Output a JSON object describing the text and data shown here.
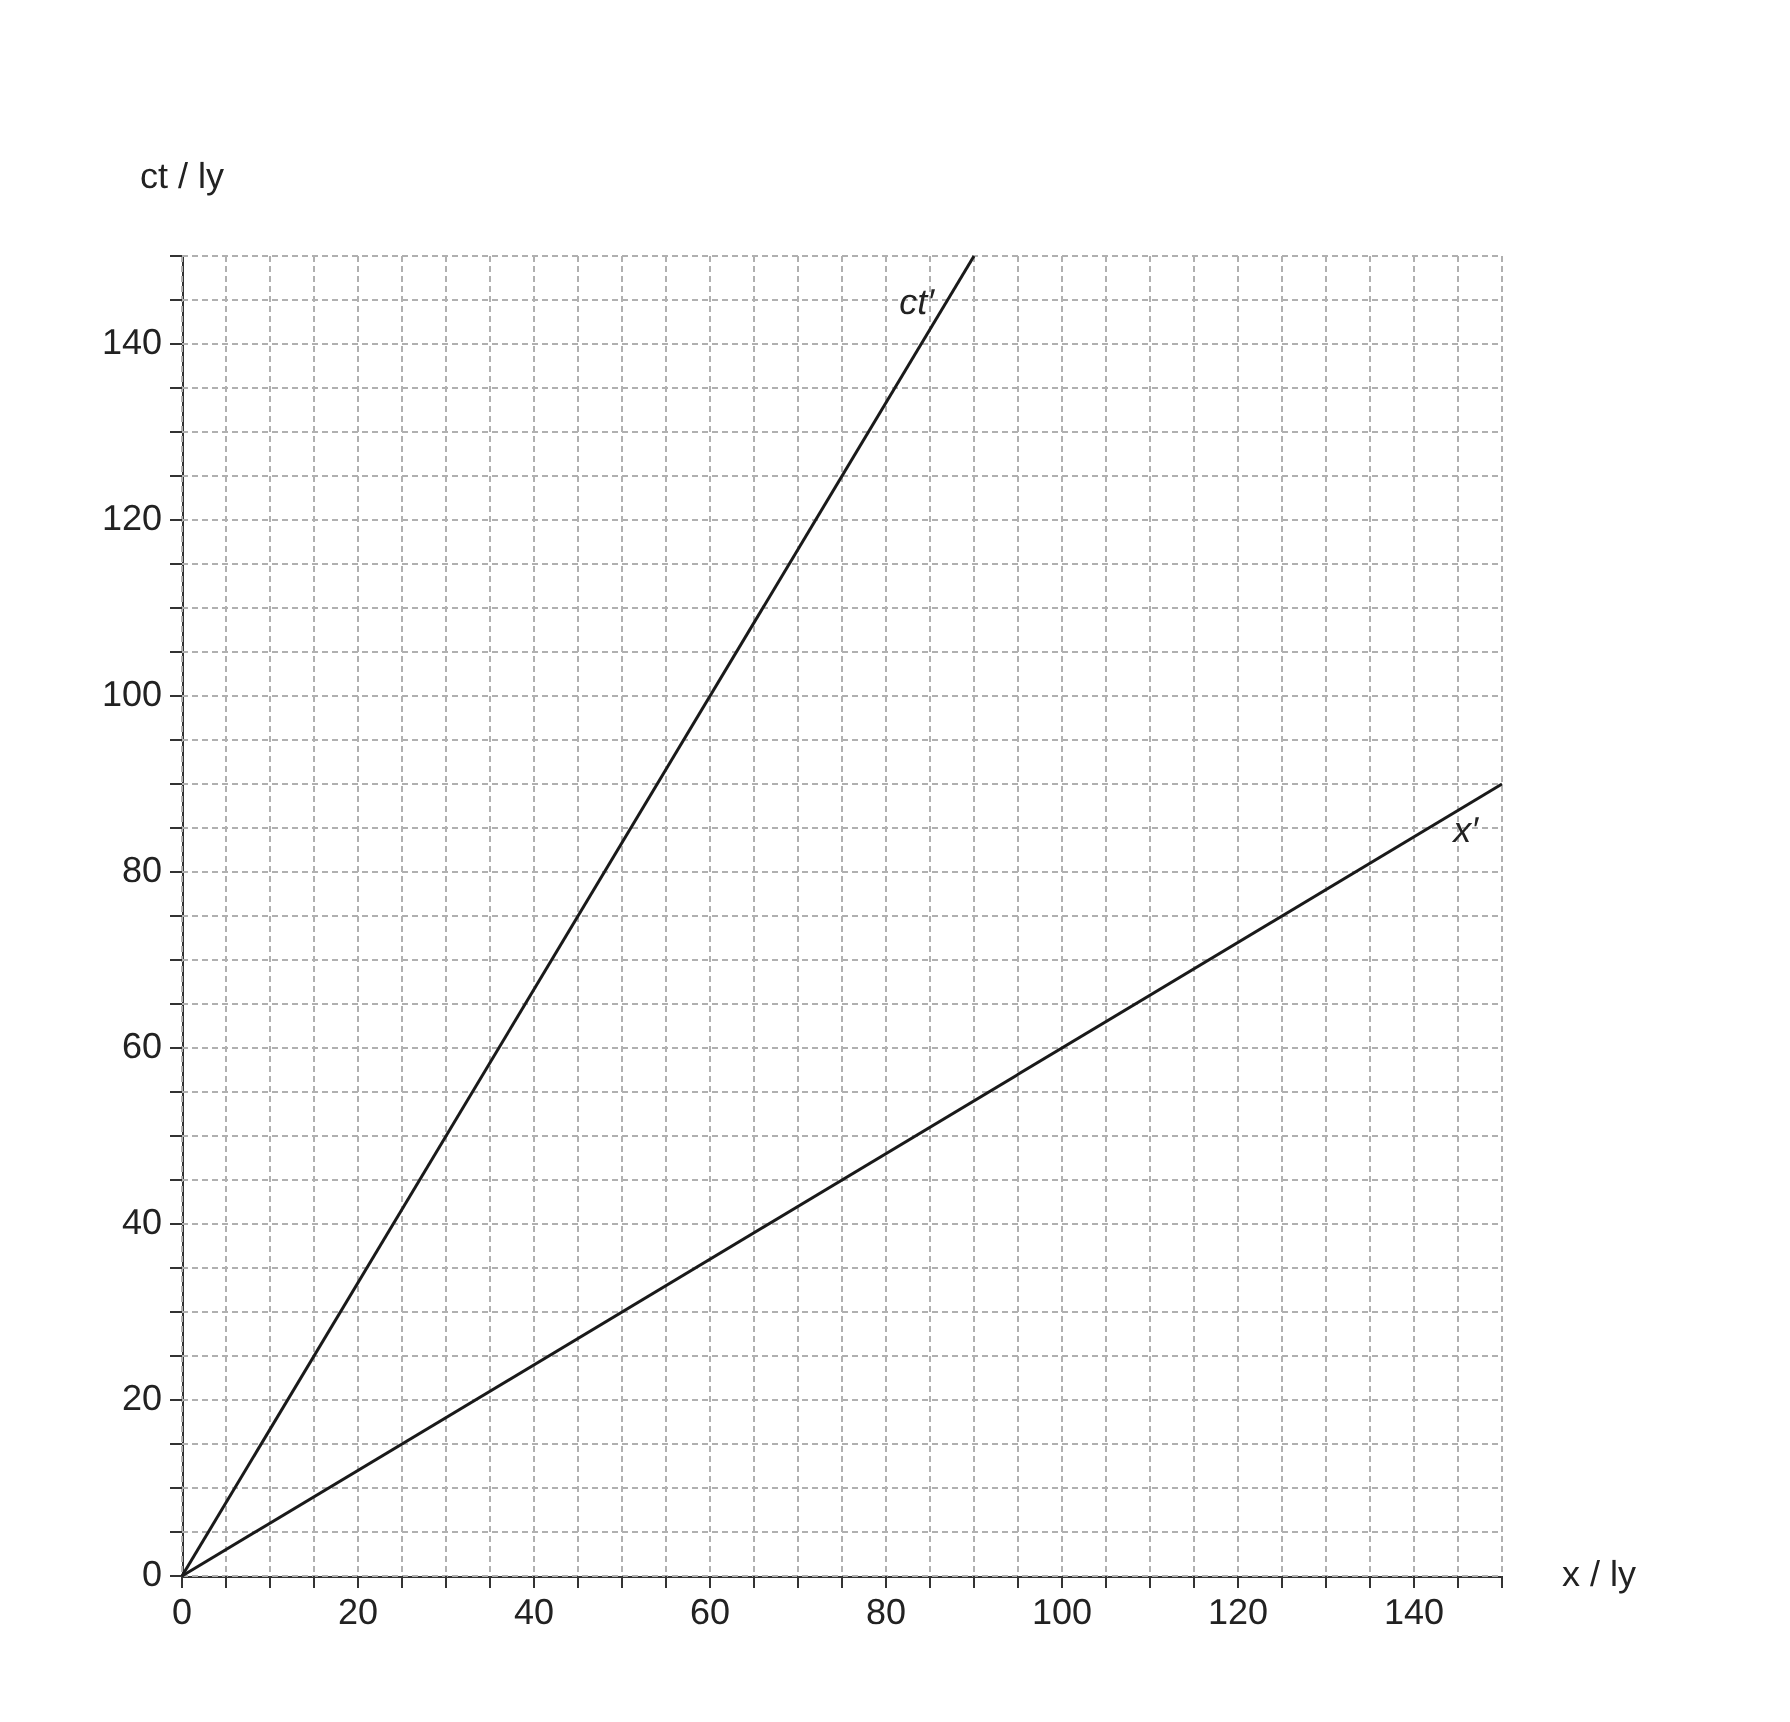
{
  "chart_data": {
    "type": "line",
    "xlabel": "x / ly",
    "ylabel": "ct / ly",
    "xlim": [
      0,
      150
    ],
    "ylim": [
      0,
      150
    ],
    "xticks": [
      0,
      {
        "value": 5,
        "label": null
      },
      {
        "value": 10,
        "label": null
      },
      {
        "value": 15,
        "label": null
      },
      20,
      {
        "value": 25,
        "label": null
      },
      {
        "value": 30,
        "label": null
      },
      {
        "value": 35,
        "label": null
      },
      40,
      {
        "value": 45,
        "label": null
      },
      {
        "value": 50,
        "label": null
      },
      {
        "value": 55,
        "label": null
      },
      60,
      {
        "value": 65,
        "label": null
      },
      {
        "value": 70,
        "label": null
      },
      {
        "value": 75,
        "label": null
      },
      80,
      {
        "value": 85,
        "label": null
      },
      {
        "value": 90,
        "label": null
      },
      {
        "value": 95,
        "label": null
      },
      100,
      {
        "value": 105,
        "label": null
      },
      {
        "value": 110,
        "label": null
      },
      {
        "value": 115,
        "label": null
      },
      120,
      {
        "value": 125,
        "label": null
      },
      {
        "value": 130,
        "label": null
      },
      {
        "value": 135,
        "label": null
      },
      140,
      {
        "value": 145,
        "label": null
      },
      {
        "value": 150,
        "label": null
      }
    ],
    "yticks": [
      0,
      {
        "value": 5,
        "label": null
      },
      {
        "value": 10,
        "label": null
      },
      {
        "value": 15,
        "label": null
      },
      20,
      {
        "value": 25,
        "label": null
      },
      {
        "value": 30,
        "label": null
      },
      {
        "value": 35,
        "label": null
      },
      40,
      {
        "value": 45,
        "label": null
      },
      {
        "value": 50,
        "label": null
      },
      {
        "value": 55,
        "label": null
      },
      60,
      {
        "value": 65,
        "label": null
      },
      {
        "value": 70,
        "label": null
      },
      {
        "value": 75,
        "label": null
      },
      80,
      {
        "value": 85,
        "label": null
      },
      {
        "value": 90,
        "label": null
      },
      {
        "value": 95,
        "label": null
      },
      100,
      {
        "value": 105,
        "label": null
      },
      {
        "value": 110,
        "label": null
      },
      {
        "value": 115,
        "label": null
      },
      120,
      {
        "value": 125,
        "label": null
      },
      {
        "value": 130,
        "label": null
      },
      {
        "value": 135,
        "label": null
      },
      140,
      {
        "value": 145,
        "label": null
      },
      {
        "value": 150,
        "label": null
      }
    ],
    "grid": true,
    "marker": "none",
    "line_style": "solid",
    "series": [
      {
        "name": "ct′",
        "color": "#1a1a1a",
        "x": [
          0,
          90
        ],
        "values": [
          0,
          150
        ]
      },
      {
        "name": "x′",
        "color": "#1a1a1a",
        "x": [
          0,
          150
        ],
        "values": [
          0,
          90
        ]
      }
    ]
  }
}
